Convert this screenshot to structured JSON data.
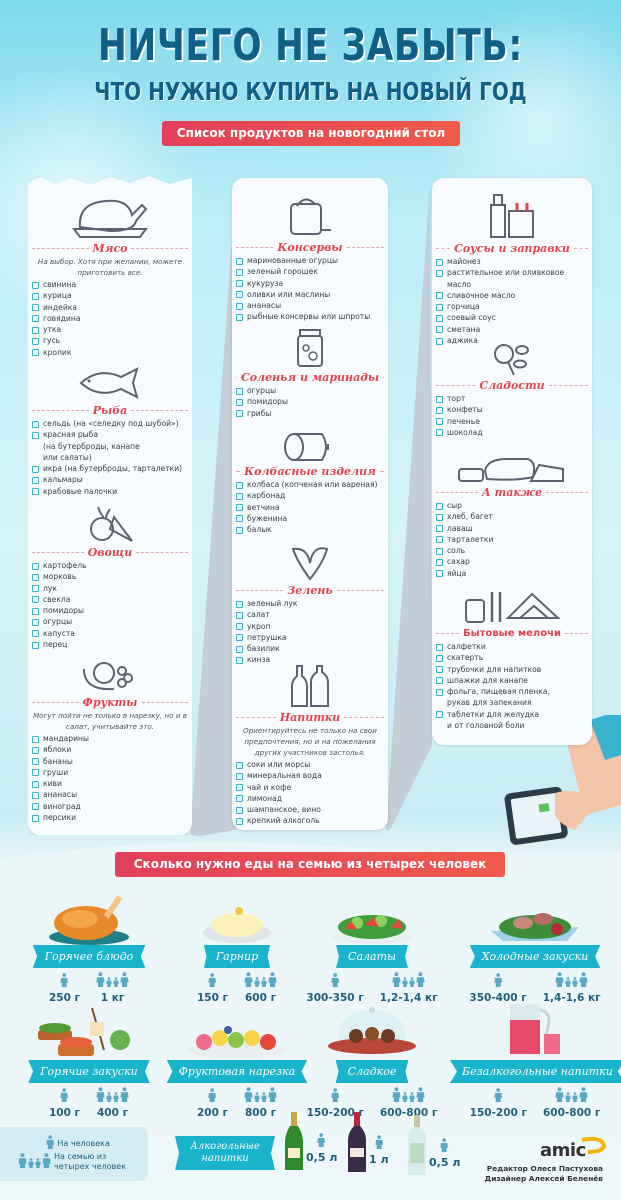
{
  "header": {
    "title": "НИЧЕГО НЕ ЗАБЫТЬ:",
    "subtitle": "ЧТО НУЖНО КУПИТЬ НА НОВЫЙ ГОД",
    "list_banner": "Список продуктов на новогодний стол"
  },
  "columns": [
    {
      "sections": [
        {
          "title": "Мясо",
          "icon": "roast-chicken-icon",
          "note": "На выбор. Хотя при желании, можете приготовить все.",
          "items": [
            "свинина",
            "курица",
            "индейка",
            "говядина",
            "утка",
            "гусь",
            "кролик"
          ]
        },
        {
          "title": "Рыба",
          "icon": "fish-icon",
          "items": [
            "сельдь (на «селедку под шубой»)",
            "красная рыба\n(на бутерброды, канапе\nили салаты)",
            "икра (на бутерброды, тарталетки)",
            "кальмары",
            "крабовые палочки"
          ]
        },
        {
          "title": "Овощи",
          "icon": "vegetables-icon",
          "items": [
            "картофель",
            "морковь",
            "лук",
            "свекла",
            "помидоры",
            "огурцы",
            "капуста",
            "перец"
          ]
        },
        {
          "title": "Фрукты",
          "icon": "fruits-icon",
          "note": "Могут пойти не только в нарезку, но и в салат, учитывайте это.",
          "items": [
            "мандарины",
            "яблоки",
            "бананы",
            "груши",
            "киви",
            "ананасы",
            "виноград",
            "персики"
          ]
        }
      ]
    },
    {
      "sections": [
        {
          "title": "Консервы",
          "icon": "canned-food-icon",
          "items": [
            "маринованные огурцы",
            "зеленый горошек",
            "кукуруза",
            "оливки или маслины",
            "ананасы",
            "рыбные консервы или шпроты"
          ]
        },
        {
          "title": "Соленья и маринады",
          "icon": "pickle-jar-icon",
          "items": [
            "огурцы",
            "помидоры",
            "грибы"
          ]
        },
        {
          "title": "Колбасные изделия",
          "icon": "sausage-icon",
          "items": [
            "колбаса (копченая или вареная)",
            "карбонад",
            "ветчина",
            "буженина",
            "балык"
          ]
        },
        {
          "title": "Зелень",
          "icon": "greens-icon",
          "items": [
            "зеленый лук",
            "салат",
            "укроп",
            "петрушка",
            "базилик",
            "кинза"
          ]
        },
        {
          "title": "Напитки",
          "icon": "bottles-icon",
          "note": "Ориентируйтесь не только на свои предпочтения, но и на пожелания других участников застолья.",
          "items": [
            "соки или морсы",
            "минеральная вода",
            "чай и кофе",
            "лимонад",
            "шампанское, вино",
            "крепкий алкоголь"
          ]
        }
      ]
    },
    {
      "sections": [
        {
          "title": "Соусы и заправки",
          "icon": "sauce-bottles-icon",
          "items": [
            "майонез",
            "растительное или оливковое масло",
            "сливочное масло",
            "горчица",
            "соевый соус",
            "сметана",
            "аджика"
          ]
        },
        {
          "title": "Сладости",
          "icon": "candy-icon",
          "items": [
            "торт",
            "конфеты",
            "печенье",
            "шоколад"
          ]
        },
        {
          "title": "А также",
          "icon": "bread-cheese-eggs-icon",
          "items": [
            "сыр",
            "хлеб, багет",
            "лаваш",
            "тарталетки",
            "соль",
            "сахар",
            "яйца"
          ]
        },
        {
          "title": "Бытовые мелочи",
          "icon": "napkins-straws-pills-icon",
          "items": [
            "салфетки",
            "скатерть",
            "трубочки для напитков",
            "шпажки для канапе",
            "фольга, пищевая пленка,\nрукав для запекания",
            "таблетки для желудка\nи от головной боли"
          ]
        }
      ]
    }
  ],
  "portions": {
    "banner": "Сколько нужно еды на семью из четырех человек",
    "items": [
      {
        "label": "Горячее блюдо",
        "per_person": "250 г",
        "per_family": "1 кг",
        "icon": "roast-chicken-image"
      },
      {
        "label": "Гарнир",
        "per_person": "150 г",
        "per_family": "600 г",
        "icon": "mashed-potatoes-image"
      },
      {
        "label": "Салаты",
        "per_person": "300-350 г",
        "per_family": "1,2-1,4 кг",
        "icon": "salad-image"
      },
      {
        "label": "Холодные закуски",
        "per_person": "350-400 г",
        "per_family": "1,4-1,6 кг",
        "icon": "cold-appetizers-image"
      },
      {
        "label": "Горячие закуски",
        "per_person": "100 г",
        "per_family": "400 г",
        "icon": "hot-appetizers-image"
      },
      {
        "label": "Фруктовая нарезка",
        "per_person": "200 г",
        "per_family": "800 г",
        "icon": "fruit-platter-image"
      },
      {
        "label": "Сладкое",
        "per_person": "150-200 г",
        "per_family": "600-800 г",
        "icon": "desserts-image"
      },
      {
        "label": "Безалкогольные напитки",
        "per_person": "150-200 г",
        "per_family": "600-800 г",
        "icon": "juice-jug-image"
      }
    ],
    "alcohol": {
      "label": "Алкогольные напитки",
      "items": [
        {
          "icon": "champagne-bottle-icon",
          "value": "0,5 л"
        },
        {
          "icon": "wine-bottle-icon",
          "value": "1 л"
        },
        {
          "icon": "vodka-bottle-icon",
          "value": "0,5 л"
        }
      ]
    }
  },
  "legend": {
    "per_person": "На человека",
    "per_family": "На семью из\nчетырех человек"
  },
  "footer": {
    "logo": "amic",
    "editor": "Редактор Олеся Пастухова",
    "designer": "Дизайнер Алексей Беленёв"
  },
  "colors": {
    "title": "#0f5f86",
    "accent_red": "#e0444f",
    "teal": "#19b3cc",
    "checkbox": "#33b4cf",
    "people": "#5aa8c8"
  }
}
